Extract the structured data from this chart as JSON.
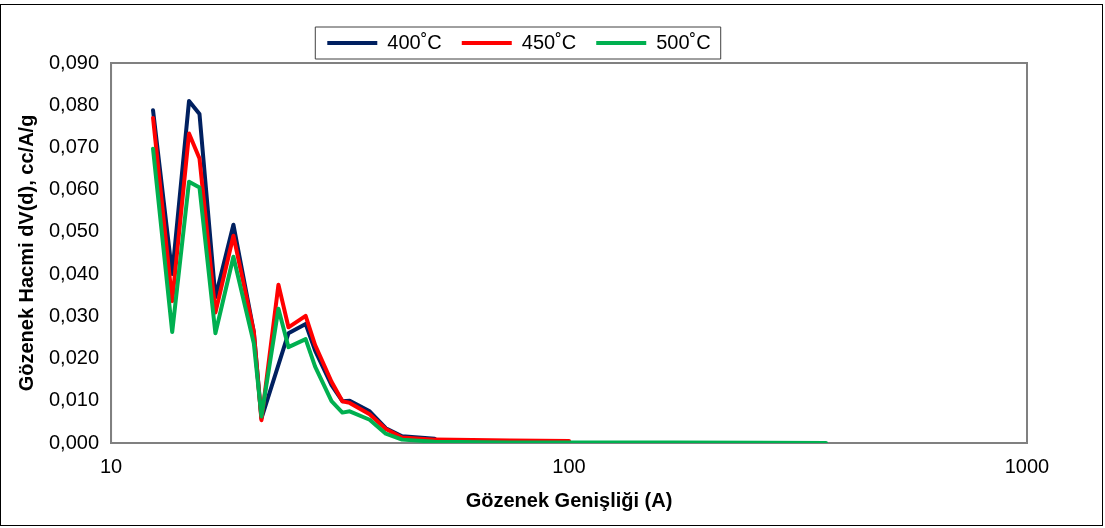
{
  "chart_data": {
    "type": "line",
    "xlabel": "Gözenek Genişliği (A)",
    "ylabel": "Gözenek Hacmi dV(d), cc/A/g",
    "x": [
      12.35,
      13.6,
      14.8,
      15.6,
      16.9,
      18.5,
      20.5,
      21.3,
      23.2,
      24.4,
      26.6,
      27.9,
      30.3,
      32.0,
      33.2,
      36.7,
      39.8,
      43.2,
      50.9,
      74.6,
      100,
      169,
      364
    ],
    "series": [
      {
        "name": "400˚C",
        "color": "#002060",
        "values": [
          0.0788,
          0.04,
          0.081,
          0.0779,
          0.0345,
          0.0517,
          0.0263,
          0.0058,
          null,
          0.026,
          0.0282,
          0.0219,
          0.0137,
          0.0099,
          0.01,
          0.0075,
          0.0035,
          0.0016,
          0.001,
          null,
          null,
          null,
          null
        ]
      },
      {
        "name": "450˚C",
        "color": "#ff0000",
        "values": [
          0.077,
          0.0336,
          0.0733,
          0.0674,
          0.0309,
          0.0491,
          0.0263,
          0.0054,
          0.0375,
          0.0274,
          0.0301,
          0.0232,
          0.0145,
          0.0099,
          0.0095,
          0.0068,
          0.0033,
          0.0013,
          0.0008,
          0.0006,
          0.0005,
          null,
          null
        ]
      },
      {
        "name": "500˚C",
        "color": "#00b050",
        "values": [
          0.0697,
          0.0263,
          0.0619,
          0.0605,
          0.026,
          0.0441,
          0.0236,
          0.0063,
          0.0318,
          0.0227,
          0.0246,
          0.0181,
          0.0099,
          0.0072,
          0.0075,
          0.0055,
          0.0022,
          0.0008,
          0.0003,
          0.0001,
          0.0001,
          0.0001,
          0
        ]
      }
    ],
    "log": "x",
    "xlim": [
      10,
      1000
    ],
    "xticks": [
      10,
      100,
      1000
    ],
    "ylim": [
      0,
      0.09
    ],
    "yticks": [
      {
        "value": 0,
        "label": "0,000"
      },
      {
        "value": 0.01,
        "label": "0,010"
      },
      {
        "value": 0.02,
        "label": "0,020"
      },
      {
        "value": 0.03,
        "label": "0,030"
      },
      {
        "value": 0.04,
        "label": "0,040"
      },
      {
        "value": 0.05,
        "label": "0,050"
      },
      {
        "value": 0.06,
        "label": "0,060"
      },
      {
        "value": 0.07,
        "label": "0,070"
      },
      {
        "value": 0.08,
        "label": "0,080"
      },
      {
        "value": 0.09,
        "label": "0,090"
      }
    ],
    "grid": false,
    "legend": "top",
    "marker": "none",
    "line_style": "solid"
  }
}
